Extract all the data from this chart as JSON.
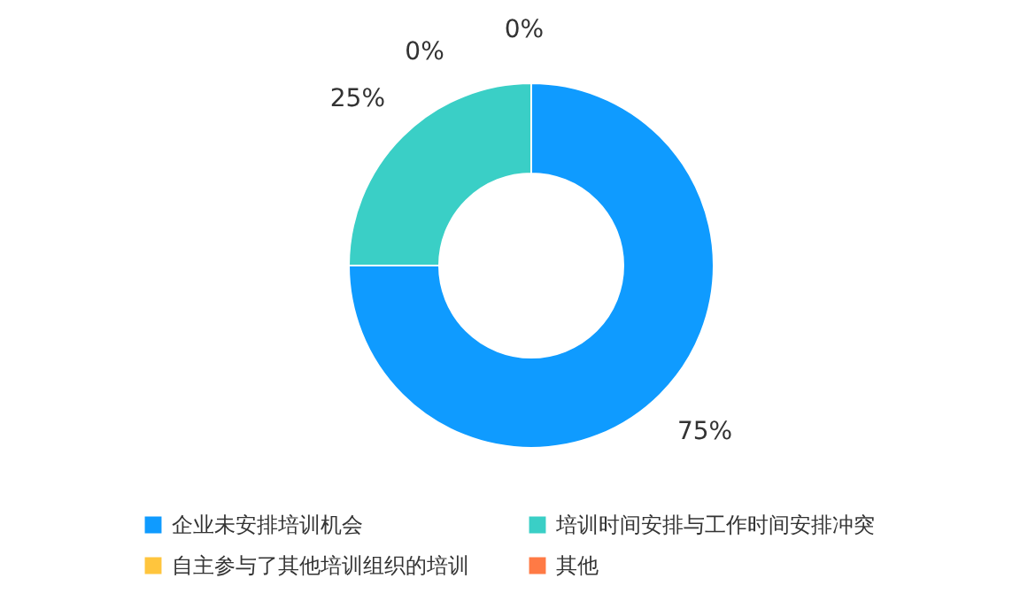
{
  "chart_data": {
    "type": "donut",
    "categories": [
      "企业未安排培训机会",
      "培训时间安排与工作时间安排冲突",
      "自主参与了其他培训组织的培训",
      "其他"
    ],
    "values": [
      75,
      25,
      0,
      0
    ],
    "colors": [
      "#0f9bff",
      "#3acfc6",
      "#ffc53d",
      "#ff7a45"
    ],
    "value_labels": [
      "75%",
      "25%",
      "0%",
      "0%"
    ],
    "legend": "bottom"
  }
}
